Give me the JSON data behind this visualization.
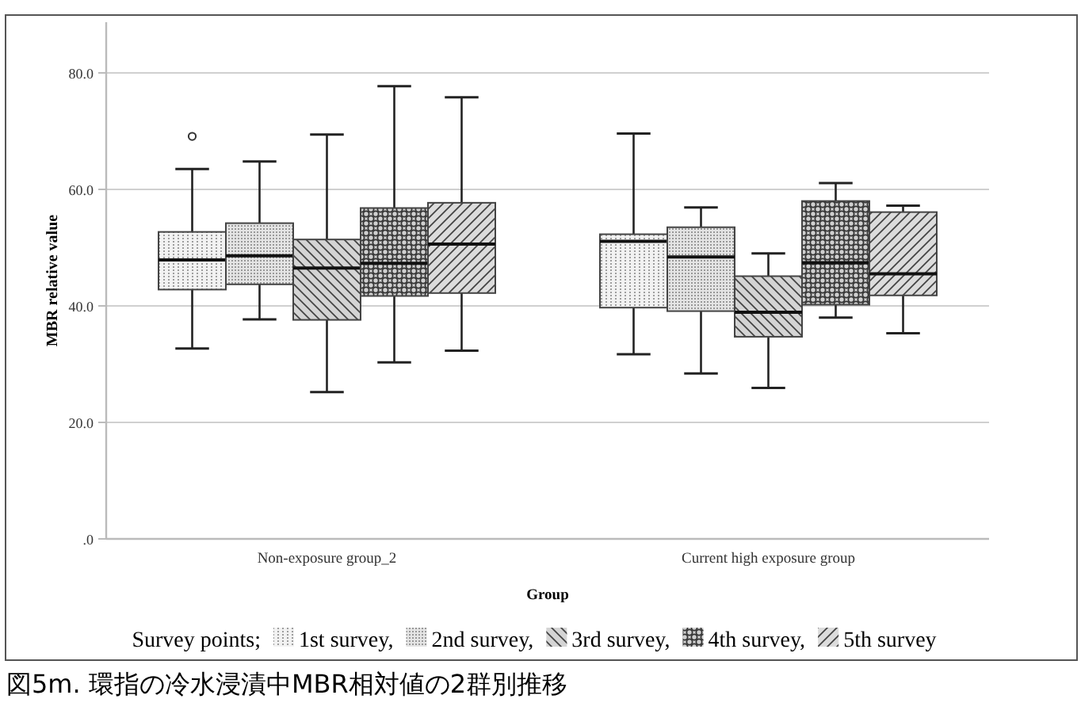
{
  "chart_data": {
    "type": "box",
    "xlabel": "Group",
    "ylabel": "MBR relative value",
    "legend_title": "Survey points;",
    "categories": [
      "Non-exposure group_2",
      "Current high exposure group"
    ],
    "series": [
      {
        "name": "1st survey,",
        "color": "#f2f2f2",
        "boxes": [
          {
            "low": 32.7,
            "q1": 42.8,
            "median": 47.9,
            "q3": 52.7,
            "high": 63.5,
            "outliers": [
              69.1
            ]
          },
          {
            "low": 31.7,
            "q1": 39.7,
            "median": 51.1,
            "q3": 52.3,
            "high": 69.6
          }
        ]
      },
      {
        "name": "2nd survey,",
        "color": "#e4e4e4",
        "boxes": [
          {
            "low": 37.7,
            "q1": 43.7,
            "median": 48.6,
            "q3": 54.2,
            "high": 64.8
          },
          {
            "low": 28.4,
            "q1": 39.1,
            "median": 48.4,
            "q3": 53.5,
            "high": 56.9
          }
        ]
      },
      {
        "name": "3rd survey,",
        "color": "#d4d4d4",
        "boxes": [
          {
            "low": 25.2,
            "q1": 37.6,
            "median": 46.5,
            "q3": 51.4,
            "high": 69.4
          },
          {
            "low": 25.9,
            "q1": 34.7,
            "median": 38.9,
            "q3": 45.1,
            "high": 49.0
          }
        ]
      },
      {
        "name": "4th survey,",
        "color": "#cfcfcf",
        "boxes": [
          {
            "low": 30.3,
            "q1": 41.7,
            "median": 47.3,
            "q3": 56.8,
            "high": 77.7
          },
          {
            "low": 38.0,
            "q1": 40.2,
            "median": 47.4,
            "q3": 58.0,
            "high": 61.1
          }
        ]
      },
      {
        "name": "5th survey",
        "color": "#dcdcdc",
        "boxes": [
          {
            "low": 32.3,
            "q1": 42.2,
            "median": 50.6,
            "q3": 57.7,
            "high": 75.8
          },
          {
            "low": 35.3,
            "q1": 41.8,
            "median": 45.5,
            "q3": 56.1,
            "high": 57.2
          }
        ]
      }
    ],
    "ylim": [
      0,
      88.7
    ],
    "yticks": [
      {
        "value": 0,
        "label": ".0"
      },
      {
        "value": 20,
        "label": "20.0"
      },
      {
        "value": 40,
        "label": "40.0"
      },
      {
        "value": 60,
        "label": "60.0"
      },
      {
        "value": 80,
        "label": "80.0"
      }
    ],
    "grid": "y",
    "legend": "bottom",
    "annotations": [
      "図5m. 環指の冷水浸漬中MBR相対値の2群別推移"
    ]
  }
}
